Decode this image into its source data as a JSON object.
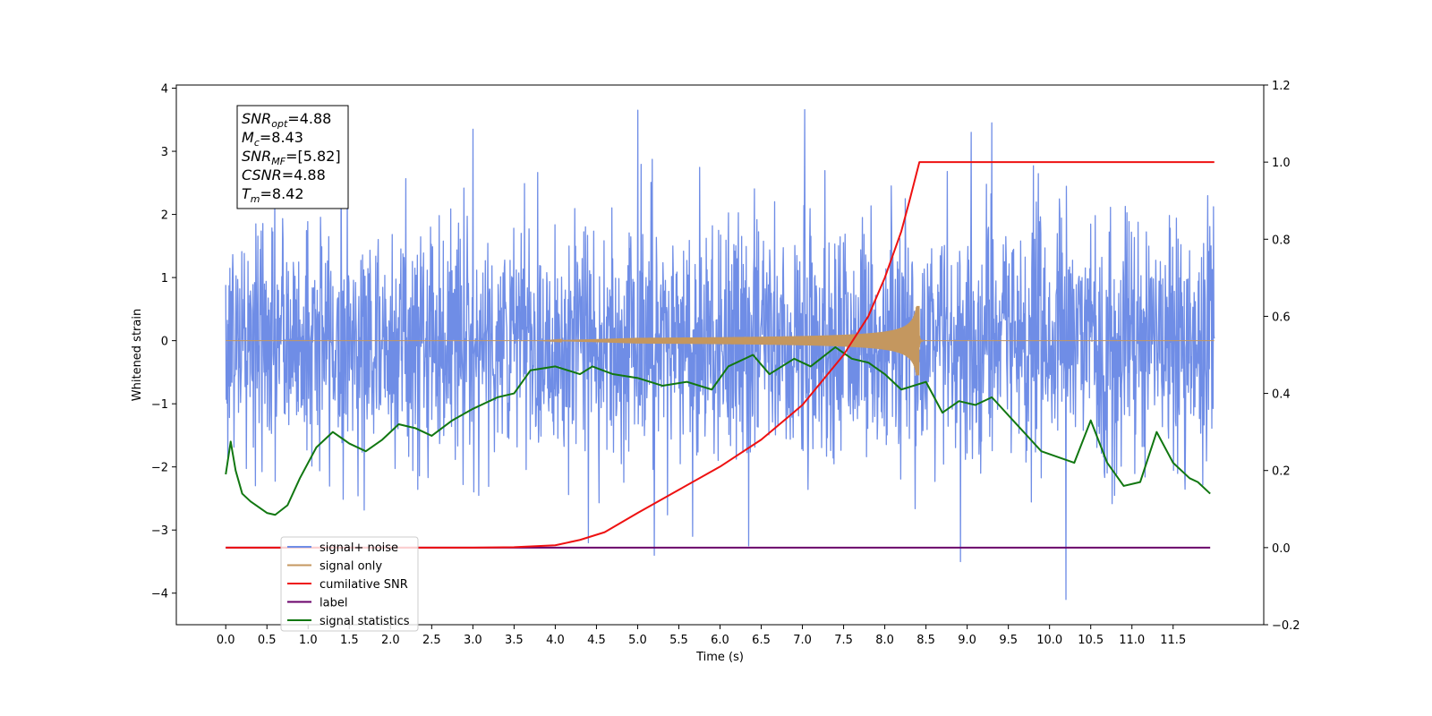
{
  "chart_data": {
    "type": "line",
    "xlabel": "Time (s)",
    "ylabel": "Whitened strain",
    "xlim": [
      -0.6,
      12.6
    ],
    "ylim": [
      -4.5,
      4.05
    ],
    "ylim_right": [
      -0.2,
      1.2
    ],
    "x_ticks": [
      0.0,
      0.5,
      1.0,
      1.5,
      2.0,
      2.5,
      3.0,
      3.5,
      4.0,
      4.5,
      5.0,
      5.5,
      6.0,
      6.5,
      7.0,
      7.5,
      8.0,
      8.5,
      9.0,
      9.5,
      10.0,
      10.5,
      11.0,
      11.5
    ],
    "x_tick_labels": [
      "0.0",
      "0.5",
      "1.0",
      "1.5",
      "2.0",
      "2.5",
      "3.0",
      "3.5",
      "4.0",
      "4.5",
      "5.0",
      "5.5",
      "6.0",
      "6.5",
      "7.0",
      "7.5",
      "8.0",
      "8.5",
      "9.0",
      "9.5",
      "10.0",
      "10.5",
      "11.0",
      "11.5"
    ],
    "y_ticks": [
      4,
      3,
      2,
      1,
      0,
      -1,
      -2,
      -3,
      -4
    ],
    "y_tick_labels": [
      "4",
      "3",
      "2",
      "1",
      "0",
      "−1",
      "−2",
      "−3",
      "−4"
    ],
    "y_ticks_right": [
      1.2,
      1.0,
      0.8,
      0.6,
      0.4,
      0.2,
      0.0,
      -0.2
    ],
    "y_tick_labels_right": [
      "1.2",
      "1.0",
      "0.8",
      "0.6",
      "0.4",
      "0.2",
      "0.0",
      "−0.2"
    ],
    "legend_placement": "lower-left",
    "colors": {
      "signal_noise": "#6f8de6",
      "signal_only": "#c4975f",
      "cumulative_snr": "#ee1111",
      "label_line": "#6a006a",
      "signal_statistics": "#117711"
    },
    "series": [
      {
        "name": "signal+ noise",
        "axis": "left",
        "description": "noisy whitened strain, approx N(0,1)",
        "x_range": [
          0.0,
          12.0
        ],
        "envelope_typical": [
          -2.3,
          2.3
        ],
        "notable_peaks": [
          {
            "x": 5.0,
            "y": 3.65
          },
          {
            "x": 7.03,
            "y": 3.66
          },
          {
            "x": 3.0,
            "y": 3.35
          },
          {
            "x": 9.05,
            "y": 3.3
          },
          {
            "x": 9.3,
            "y": 3.45
          },
          {
            "x": 5.2,
            "y": -3.4
          },
          {
            "x": 8.92,
            "y": -3.5
          },
          {
            "x": 10.2,
            "y": -4.1
          },
          {
            "x": 6.35,
            "y": -3.25
          },
          {
            "x": 4.4,
            "y": -3.2
          }
        ]
      },
      {
        "name": "signal only",
        "axis": "left",
        "description": "chirp, amplitude grows until merger",
        "x_range": [
          0.0,
          12.0
        ],
        "merger_time": 8.42,
        "peak_amplitude": 0.55
      },
      {
        "name": "cumilative SNR",
        "axis": "right",
        "x": [
          0.0,
          3.0,
          3.5,
          4.0,
          4.3,
          4.6,
          5.0,
          5.5,
          6.0,
          6.5,
          7.0,
          7.5,
          7.8,
          8.0,
          8.2,
          8.3,
          8.42,
          12.0
        ],
        "values": [
          0.0,
          0.0,
          0.001,
          0.006,
          0.02,
          0.04,
          0.09,
          0.15,
          0.21,
          0.28,
          0.37,
          0.5,
          0.6,
          0.7,
          0.82,
          0.9,
          1.0,
          1.0
        ]
      },
      {
        "name": "label",
        "axis": "right",
        "x": [
          0.0,
          11.95
        ],
        "values": [
          0.0,
          0.0
        ]
      },
      {
        "name": "signal statistics",
        "axis": "right",
        "x": [
          0.0,
          0.06,
          0.12,
          0.2,
          0.3,
          0.5,
          0.6,
          0.75,
          0.9,
          1.1,
          1.3,
          1.5,
          1.7,
          1.9,
          2.1,
          2.3,
          2.5,
          2.75,
          3.0,
          3.3,
          3.5,
          3.7,
          4.0,
          4.3,
          4.45,
          4.7,
          5.0,
          5.3,
          5.6,
          5.9,
          6.1,
          6.4,
          6.6,
          6.9,
          7.1,
          7.4,
          7.6,
          7.8,
          8.0,
          8.2,
          8.5,
          8.7,
          8.9,
          9.1,
          9.3,
          9.6,
          9.9,
          10.3,
          10.5,
          10.7,
          10.9,
          11.1,
          11.3,
          11.5,
          11.7,
          11.8,
          11.95
        ],
        "values": [
          0.19,
          0.275,
          0.2,
          0.14,
          0.12,
          0.09,
          0.085,
          0.11,
          0.18,
          0.26,
          0.3,
          0.27,
          0.25,
          0.28,
          0.32,
          0.31,
          0.29,
          0.33,
          0.36,
          0.39,
          0.4,
          0.46,
          0.47,
          0.45,
          0.47,
          0.45,
          0.44,
          0.42,
          0.43,
          0.41,
          0.47,
          0.5,
          0.45,
          0.49,
          0.47,
          0.52,
          0.49,
          0.48,
          0.45,
          0.41,
          0.43,
          0.35,
          0.38,
          0.37,
          0.39,
          0.32,
          0.25,
          0.22,
          0.33,
          0.22,
          0.16,
          0.17,
          0.3,
          0.22,
          0.18,
          0.17,
          0.14
        ]
      }
    ],
    "legend": [
      {
        "label": "signal+ noise",
        "color_key": "signal_noise"
      },
      {
        "label": "signal only",
        "color_key": "signal_only"
      },
      {
        "label": "cumilative SNR",
        "color_key": "cumulative_snr"
      },
      {
        "label": "label",
        "color_key": "label_line"
      },
      {
        "label": "signal statistics",
        "color_key": "signal_statistics"
      }
    ],
    "annotation": {
      "lines": [
        {
          "main": "SNR",
          "sub": "opt",
          "value": "=4.88"
        },
        {
          "main": "M",
          "sub": "c",
          "value": "=8.43"
        },
        {
          "main": "SNR",
          "sub": "MF",
          "value": "=[5.82]"
        },
        {
          "main": "CSNR",
          "sub": "",
          "value": "=4.88"
        },
        {
          "main": "T",
          "sub": "m",
          "value": "=8.42"
        }
      ]
    }
  }
}
